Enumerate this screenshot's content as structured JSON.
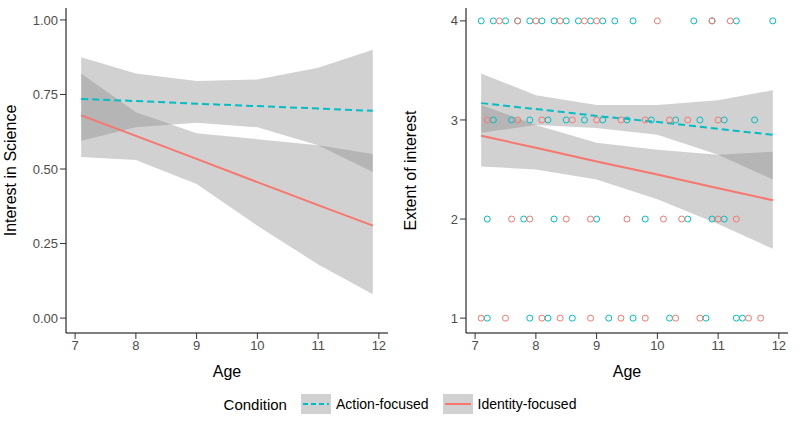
{
  "chart_data": [
    {
      "type": "line",
      "x_label": "Age",
      "y_label": "Interest in Science",
      "xlim": [
        6.85,
        12.15
      ],
      "xticks": [
        7,
        8,
        9,
        10,
        11,
        12
      ],
      "ylim": [
        -0.05,
        1.04
      ],
      "yticks": [
        {
          "value": 0,
          "label": "0.00"
        },
        {
          "value": 0.25,
          "label": "0.25"
        },
        {
          "value": 0.5,
          "label": "0.50"
        },
        {
          "value": 0.75,
          "label": "0.75"
        },
        {
          "value": 1,
          "label": "1.00"
        }
      ],
      "grid": false,
      "x": [
        7.1,
        8,
        9,
        10,
        11,
        11.9
      ],
      "series": [
        {
          "name": "Action-focused",
          "color": "#00BFC4",
          "line_style": "dashed",
          "values": [
            0.735,
            0.728,
            0.719,
            0.711,
            0.703,
            0.695
          ],
          "lower": [
            0.595,
            0.64,
            0.655,
            0.64,
            0.58,
            0.49
          ],
          "upper": [
            0.875,
            0.82,
            0.795,
            0.8,
            0.84,
            0.9
          ]
        },
        {
          "name": "Identity-focused",
          "color": "#F8766D",
          "line_style": "solid",
          "values": [
            0.68,
            0.611,
            0.534,
            0.456,
            0.379,
            0.31
          ],
          "lower": [
            0.54,
            0.53,
            0.45,
            0.31,
            0.18,
            0.08
          ],
          "upper": [
            0.82,
            0.69,
            0.62,
            0.6,
            0.58,
            0.55
          ]
        }
      ]
    },
    {
      "type": "line",
      "x_label": "Age",
      "y_label": "Extent of interest",
      "xlim": [
        6.85,
        12.15
      ],
      "xticks": [
        7,
        8,
        9,
        10,
        11,
        12
      ],
      "ylim": [
        0.85,
        4.13
      ],
      "yticks": [
        1,
        2,
        3,
        4
      ],
      "grid": false,
      "x": [
        7.1,
        8,
        9,
        10,
        11,
        11.9
      ],
      "series": [
        {
          "name": "Action-focused",
          "color": "#00BFC4",
          "line_style": "dashed",
          "marker": "open_circle",
          "values": [
            3.17,
            3.11,
            3.04,
            2.98,
            2.91,
            2.85
          ],
          "lower": [
            2.87,
            2.95,
            2.92,
            2.85,
            2.65,
            2.4
          ],
          "upper": [
            3.47,
            3.25,
            3.15,
            3.15,
            3.2,
            3.3
          ],
          "points_x": [
            7.1,
            7.3,
            7.5,
            7.7,
            7.9,
            8.1,
            8.3,
            8.5,
            8.7,
            8.9,
            9.1,
            9.3,
            9.6,
            10.6,
            10.9,
            11.3,
            11.9,
            7.3,
            7.6,
            7.9,
            8.2,
            8.5,
            8.8,
            9.1,
            9.5,
            9.9,
            10.3,
            10.7,
            11.1,
            11.6,
            7.2,
            7.8,
            8.3,
            9.0,
            9.8,
            10.5,
            10.9,
            11.1,
            7.2,
            7.9,
            8.2,
            8.6,
            9.2,
            9.6,
            10.2,
            10.8,
            11.3,
            11.4
          ],
          "points_y": [
            4,
            4,
            4,
            4,
            4,
            4,
            4,
            4,
            4,
            4,
            4,
            4,
            4,
            4,
            4,
            4,
            4,
            3,
            3,
            3,
            3,
            3,
            3,
            3,
            3,
            3,
            3,
            3,
            3,
            3,
            2,
            2,
            2,
            2,
            2,
            2,
            2,
            2,
            1,
            1,
            1,
            1,
            1,
            1,
            1,
            1,
            1,
            1
          ]
        },
        {
          "name": "Identity-focused",
          "color": "#F8766D",
          "line_style": "solid",
          "marker": "open_circle",
          "values": [
            2.84,
            2.72,
            2.58,
            2.45,
            2.31,
            2.19
          ],
          "lower": [
            2.53,
            2.5,
            2.4,
            2.2,
            1.95,
            1.7
          ],
          "upper": [
            3.15,
            2.95,
            2.77,
            2.7,
            2.65,
            2.68
          ],
          "points_x": [
            7.4,
            7.7,
            8.0,
            8.4,
            8.8,
            9.0,
            10.0,
            10.9,
            11.2,
            7.2,
            7.7,
            8.1,
            8.6,
            9.0,
            9.4,
            9.8,
            10.2,
            10.5,
            11.0,
            7.6,
            7.9,
            8.5,
            8.9,
            9.5,
            10.1,
            10.4,
            11.0,
            11.3,
            7.1,
            7.5,
            8.1,
            8.4,
            8.9,
            9.4,
            9.8,
            10.3,
            10.7,
            11.5,
            11.7
          ],
          "points_y": [
            4,
            4,
            4,
            4,
            4,
            4,
            4,
            4,
            4,
            3,
            3,
            3,
            3,
            3,
            3,
            3,
            3,
            3,
            3,
            2,
            2,
            2,
            2,
            2,
            2,
            2,
            2,
            2,
            1,
            1,
            1,
            1,
            1,
            1,
            1,
            1,
            1,
            1,
            1
          ]
        }
      ]
    }
  ],
  "legend": "bottom",
  "legend_title": "Condition"
}
